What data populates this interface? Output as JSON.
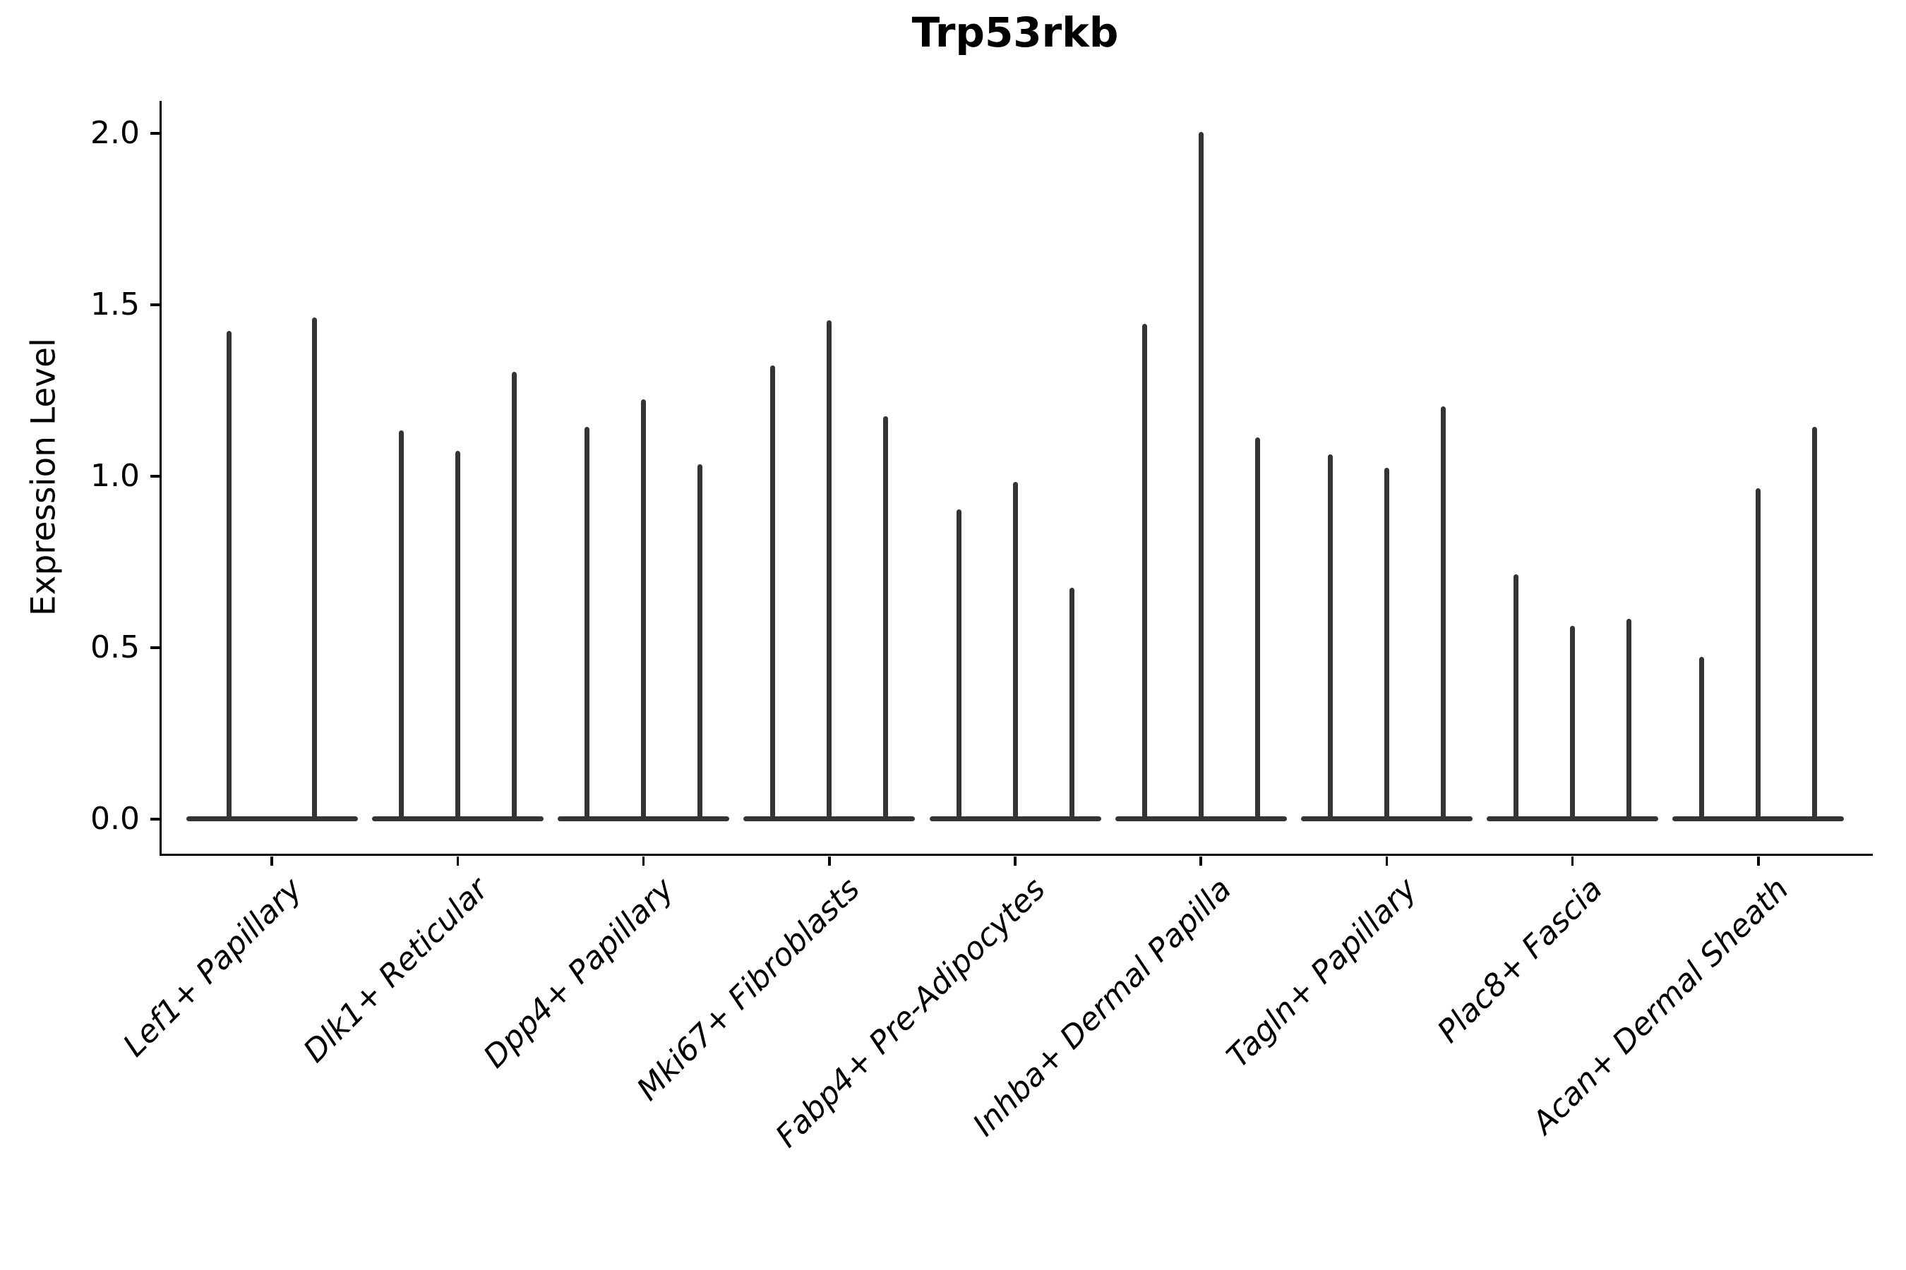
{
  "chart_data": {
    "type": "violin",
    "title": "Trp53rkb",
    "ylabel": "Expression Level",
    "xlabel": "",
    "ytick_labels": [
      "0.0",
      "0.5",
      "1.0",
      "1.5",
      "2.0"
    ],
    "ytick_values": [
      0.0,
      0.5,
      1.0,
      1.5,
      2.0
    ],
    "ylim": [
      -0.101,
      2.095
    ],
    "grid": false,
    "legend_position": "none",
    "violin_color": "#343434",
    "axis_color": "#000000",
    "categories": [
      "Lef1+ Papillary",
      "Dlk1+ Reticular",
      "Dpp4+ Papillary",
      "Mki67+ Fibroblasts",
      "Fabp4+ Pre-Adipocytes",
      "Inhba+ Dermal Papilla",
      "Tagln+ Papillary",
      "Plac8+ Fascia",
      "Acan+ Dermal Sheath"
    ],
    "groups": [
      {
        "category": "Lef1+ Papillary",
        "violin_max_values": [
          1.42,
          1.46
        ]
      },
      {
        "category": "Dlk1+ Reticular",
        "violin_max_values": [
          1.13,
          1.07,
          1.3
        ]
      },
      {
        "category": "Dpp4+ Papillary",
        "violin_max_values": [
          1.14,
          1.22,
          1.03
        ]
      },
      {
        "category": "Mki67+ Fibroblasts",
        "violin_max_values": [
          1.32,
          1.45,
          1.17
        ]
      },
      {
        "category": "Fabp4+ Pre-Adipocytes",
        "violin_max_values": [
          0.9,
          0.98,
          0.67
        ]
      },
      {
        "category": "Inhba+ Dermal Papilla",
        "violin_max_values": [
          1.44,
          2.0,
          1.11
        ]
      },
      {
        "category": "Tagln+ Papillary",
        "violin_max_values": [
          1.06,
          1.02,
          1.2
        ]
      },
      {
        "category": "Plac8+ Fascia",
        "violin_max_values": [
          0.71,
          0.56,
          0.58
        ]
      },
      {
        "category": "Acan+ Dermal Sheath",
        "violin_max_values": [
          0.47,
          0.96,
          1.14
        ]
      }
    ]
  }
}
